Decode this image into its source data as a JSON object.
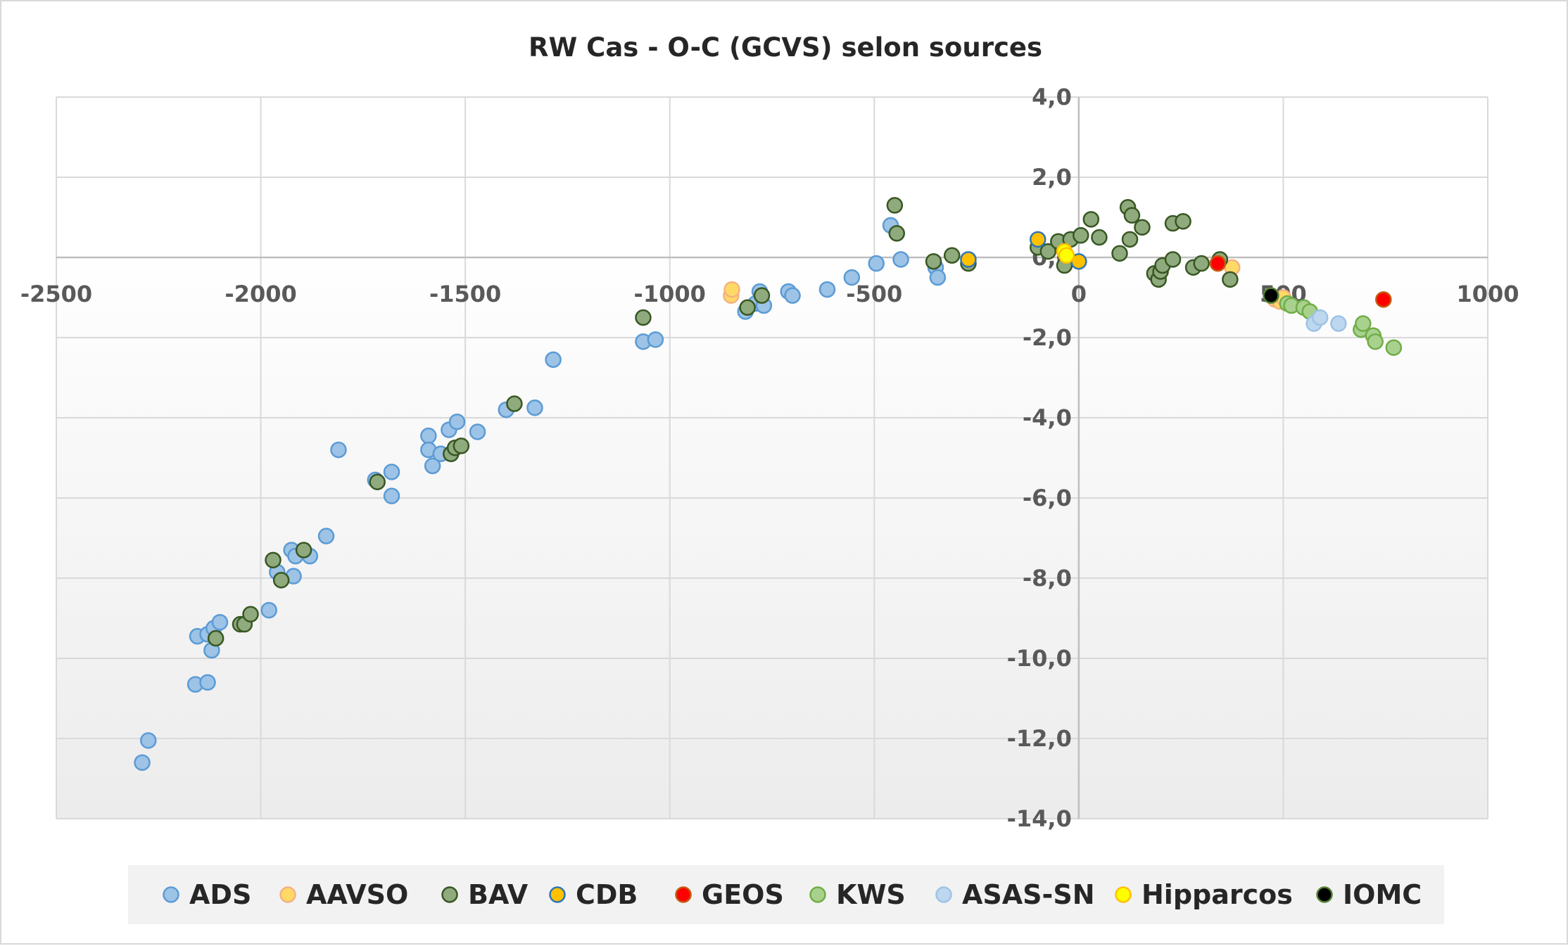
{
  "chart_data": {
    "type": "scatter",
    "title": "RW Cas - O-C (GCVS) selon sources",
    "xlabel": "",
    "ylabel": "",
    "xlim": [
      -2500,
      1000
    ],
    "ylim": [
      -14,
      4
    ],
    "x_ticks": [
      -2500,
      -2000,
      -1500,
      -1000,
      -500,
      0,
      500,
      1000
    ],
    "x_tick_labels": [
      "-2500",
      "-2000",
      "-1500",
      "-1000",
      "-500",
      "0",
      "500",
      "1000"
    ],
    "y_ticks": [
      4,
      2,
      0,
      -2,
      -4,
      -6,
      -8,
      -10,
      -12,
      -14
    ],
    "y_tick_labels": [
      "4,0",
      "2,0",
      "0,0",
      "-2,0",
      "-4,0",
      "-6,0",
      "-8,0",
      "-10,0",
      "-12,0",
      "-14,0"
    ],
    "grid": true,
    "legend_position": "bottom",
    "series": [
      {
        "name": "ADS",
        "fill": "#9dc3e6",
        "stroke": "#5b9bd5",
        "points": [
          [
            -2290,
            -12.6
          ],
          [
            -2275,
            -12.05
          ],
          [
            -2160,
            -10.65
          ],
          [
            -2130,
            -10.6
          ],
          [
            -2155,
            -9.45
          ],
          [
            -2130,
            -9.4
          ],
          [
            -2115,
            -9.25
          ],
          [
            -2100,
            -9.1
          ],
          [
            -2120,
            -9.8
          ],
          [
            -1980,
            -8.8
          ],
          [
            -1960,
            -7.85
          ],
          [
            -1920,
            -7.95
          ],
          [
            -1925,
            -7.3
          ],
          [
            -1915,
            -7.45
          ],
          [
            -1880,
            -7.45
          ],
          [
            -1840,
            -6.95
          ],
          [
            -1810,
            -4.8
          ],
          [
            -1720,
            -5.55
          ],
          [
            -1680,
            -5.95
          ],
          [
            -1680,
            -5.35
          ],
          [
            -1590,
            -4.45
          ],
          [
            -1590,
            -4.8
          ],
          [
            -1580,
            -5.2
          ],
          [
            -1560,
            -4.9
          ],
          [
            -1540,
            -4.3
          ],
          [
            -1520,
            -4.1
          ],
          [
            -1470,
            -4.35
          ],
          [
            -1400,
            -3.8
          ],
          [
            -1330,
            -3.75
          ],
          [
            -1285,
            -2.55
          ],
          [
            -1065,
            -2.1
          ],
          [
            -1035,
            -2.05
          ],
          [
            -815,
            -1.35
          ],
          [
            -790,
            -1.15
          ],
          [
            -780,
            -0.85
          ],
          [
            -770,
            -1.2
          ],
          [
            -710,
            -0.85
          ],
          [
            -700,
            -0.95
          ],
          [
            -615,
            -0.8
          ],
          [
            -555,
            -0.5
          ],
          [
            -495,
            -0.15
          ],
          [
            -460,
            0.8
          ],
          [
            -435,
            -0.05
          ],
          [
            -350,
            -0.25
          ],
          [
            -345,
            -0.5
          ]
        ]
      },
      {
        "name": "AAVSO",
        "fill": "#ffd966",
        "stroke": "#f4b183",
        "points": [
          [
            -850,
            -0.95
          ],
          [
            -848,
            -0.8
          ],
          [
            375,
            -0.25
          ],
          [
            480,
            -1.05
          ],
          [
            492,
            -1.1
          ],
          [
            500,
            -1.0
          ]
        ]
      },
      {
        "name": "BAV",
        "fill": "#8faa7d",
        "stroke": "#385723",
        "points": [
          [
            -2110,
            -9.5
          ],
          [
            -2050,
            -9.15
          ],
          [
            -2040,
            -9.15
          ],
          [
            -2025,
            -8.9
          ],
          [
            -1970,
            -7.55
          ],
          [
            -1950,
            -8.05
          ],
          [
            -1895,
            -7.3
          ],
          [
            -1715,
            -5.6
          ],
          [
            -1535,
            -4.9
          ],
          [
            -1525,
            -4.75
          ],
          [
            -1510,
            -4.7
          ],
          [
            -1380,
            -3.65
          ],
          [
            -1065,
            -1.5
          ],
          [
            -810,
            -1.25
          ],
          [
            -775,
            -0.95
          ],
          [
            -450,
            1.3
          ],
          [
            -445,
            0.6
          ],
          [
            -355,
            -0.1
          ],
          [
            -310,
            0.05
          ],
          [
            -270,
            -0.15
          ],
          [
            -100,
            0.25
          ],
          [
            -75,
            0.15
          ],
          [
            -50,
            0.4
          ],
          [
            -35,
            -0.2
          ],
          [
            -20,
            0.45
          ],
          [
            5,
            0.55
          ],
          [
            30,
            0.95
          ],
          [
            50,
            0.5
          ],
          [
            100,
            0.1
          ],
          [
            120,
            1.25
          ],
          [
            125,
            0.45
          ],
          [
            130,
            1.05
          ],
          [
            155,
            0.75
          ],
          [
            185,
            -0.4
          ],
          [
            195,
            -0.55
          ],
          [
            200,
            -0.35
          ],
          [
            205,
            -0.2
          ],
          [
            230,
            -0.05
          ],
          [
            230,
            0.85
          ],
          [
            255,
            0.9
          ],
          [
            280,
            -0.25
          ],
          [
            300,
            -0.15
          ],
          [
            345,
            -0.05
          ],
          [
            370,
            -0.55
          ]
        ]
      },
      {
        "name": "CDB",
        "fill": "#ffc000",
        "stroke": "#2e75b6",
        "points": [
          [
            -270,
            -0.05
          ],
          [
            -100,
            0.45
          ],
          [
            0,
            -0.1
          ]
        ]
      },
      {
        "name": "GEOS",
        "fill": "#ff0000",
        "stroke": "#c55a11",
        "points": [
          [
            340,
            -0.15
          ],
          [
            745,
            -1.05
          ]
        ]
      },
      {
        "name": "KWS",
        "fill": "#a9d18e",
        "stroke": "#70ad47",
        "points": [
          [
            510,
            -1.15
          ],
          [
            520,
            -1.2
          ],
          [
            550,
            -1.25
          ],
          [
            565,
            -1.35
          ],
          [
            690,
            -1.8
          ],
          [
            695,
            -1.65
          ],
          [
            720,
            -1.95
          ],
          [
            725,
            -2.1
          ],
          [
            770,
            -2.25
          ]
        ]
      },
      {
        "name": "ASAS-SN",
        "fill": "#bdd7ee",
        "stroke": "#9dc3e6",
        "points": [
          [
            575,
            -1.65
          ],
          [
            590,
            -1.5
          ],
          [
            635,
            -1.65
          ]
        ]
      },
      {
        "name": "Hipparcos",
        "fill": "#ffff00",
        "stroke": "#ffc000",
        "points": [
          [
            -35,
            0.15
          ],
          [
            -30,
            0.05
          ]
        ]
      },
      {
        "name": "IOMC",
        "fill": "#000000",
        "stroke": "#548235",
        "points": [
          [
            470,
            -0.95
          ]
        ]
      }
    ]
  }
}
